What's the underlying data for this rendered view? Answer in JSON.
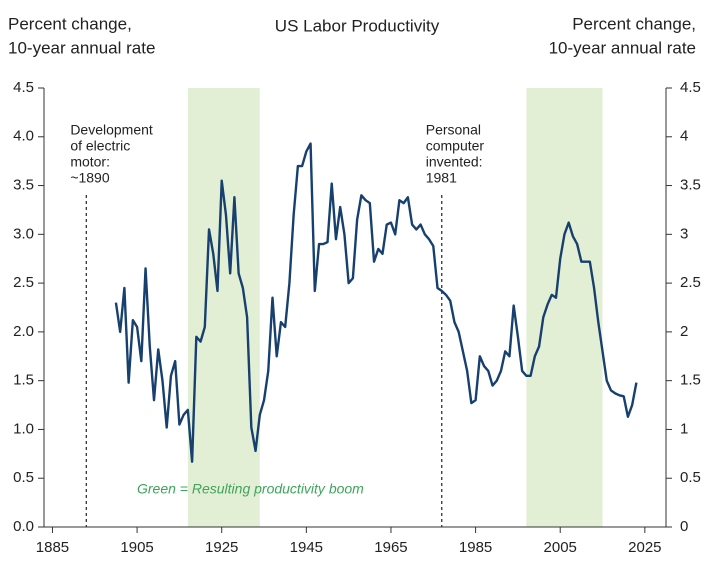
{
  "chart_data": {
    "type": "line",
    "title": "US Labor Productivity",
    "ylabel": [
      "Percent change,",
      "10-year annual rate"
    ],
    "y2label": [
      "Percent change,",
      "10-year annual rate"
    ],
    "x": [
      1900,
      1901,
      1902,
      1903,
      1904,
      1905,
      1906,
      1907,
      1908,
      1909,
      1910,
      1911,
      1912,
      1913,
      1914,
      1915,
      1916,
      1917,
      1918,
      1919,
      1920,
      1921,
      1922,
      1923,
      1924,
      1925,
      1926,
      1927,
      1928,
      1929,
      1930,
      1931,
      1932,
      1933,
      1934,
      1935,
      1936,
      1937,
      1938,
      1939,
      1940,
      1941,
      1942,
      1943,
      1944,
      1945,
      1946,
      1947,
      1948,
      1949,
      1950,
      1951,
      1952,
      1953,
      1954,
      1955,
      1956,
      1957,
      1958,
      1959,
      1960,
      1961,
      1962,
      1963,
      1964,
      1965,
      1966,
      1967,
      1968,
      1969,
      1970,
      1971,
      1972,
      1973,
      1974,
      1975,
      1976,
      1977,
      1978,
      1979,
      1980,
      1981,
      1982,
      1983,
      1984,
      1985,
      1986,
      1987,
      1988,
      1989,
      1990,
      1991,
      1992,
      1993,
      1994,
      1995,
      1996,
      1997,
      1998,
      1999,
      2000,
      2001,
      2002,
      2003,
      2004,
      2005,
      2006,
      2007,
      2008,
      2009,
      2010,
      2011,
      2012,
      2013,
      2014,
      2015,
      2016,
      2017,
      2018,
      2019,
      2020,
      2021,
      2022,
      2023
    ],
    "series": [
      {
        "color": "#17406e",
        "values": [
          2.3,
          2.0,
          2.45,
          1.48,
          2.12,
          2.05,
          1.7,
          2.65,
          1.85,
          1.3,
          1.82,
          1.5,
          1.02,
          1.55,
          1.7,
          1.05,
          1.15,
          1.2,
          0.67,
          1.95,
          1.9,
          2.05,
          3.05,
          2.8,
          2.42,
          3.55,
          3.2,
          2.6,
          3.38,
          2.6,
          2.45,
          2.15,
          1.02,
          0.78,
          1.15,
          1.3,
          1.6,
          2.35,
          1.75,
          2.1,
          2.05,
          2.5,
          3.2,
          3.7,
          3.7,
          3.85,
          3.93,
          2.42,
          2.9,
          2.9,
          2.92,
          3.52,
          2.95,
          3.28,
          3.0,
          2.5,
          2.55,
          3.15,
          3.4,
          3.35,
          3.32,
          2.72,
          2.85,
          2.8,
          3.1,
          3.12,
          3.0,
          3.35,
          3.32,
          3.38,
          3.1,
          3.05,
          3.1,
          3.0,
          2.95,
          2.88,
          2.45,
          2.42,
          2.38,
          2.32,
          2.1,
          2.0,
          1.8,
          1.6,
          1.27,
          1.3,
          1.75,
          1.65,
          1.6,
          1.45,
          1.5,
          1.6,
          1.8,
          1.75,
          2.27,
          1.95,
          1.6,
          1.55,
          1.55,
          1.75,
          1.85,
          2.15,
          2.28,
          2.38,
          2.35,
          2.75,
          3.0,
          3.12,
          2.98,
          2.9,
          2.72,
          2.72,
          2.72,
          2.45,
          2.1,
          1.8,
          1.5,
          1.4,
          1.37,
          1.35,
          1.34,
          1.13,
          1.25,
          1.48
        ]
      }
    ],
    "xlim": [
      1883,
      2030
    ],
    "xticks": [
      1885,
      1905,
      1925,
      1945,
      1965,
      1985,
      2005,
      2025
    ],
    "ylim": [
      0,
      4.5
    ],
    "yticks": [
      {
        "value": 0,
        "label": "0.0"
      },
      0.5,
      {
        "value": 1,
        "label": "1.0"
      },
      1.5,
      {
        "value": 2,
        "label": "2.0"
      },
      2.5,
      {
        "value": 3,
        "label": "3.0"
      },
      3.5,
      {
        "value": 4,
        "label": "4.0"
      },
      4.5
    ],
    "y2lim": [
      0,
      4.5
    ],
    "y2ticks": [
      0,
      0.5,
      1,
      1.5,
      2,
      2.5,
      3,
      3.5,
      4,
      4.5
    ],
    "shaded": [
      {
        "start": 1917,
        "end": 1934
      },
      {
        "start": 1997,
        "end": 2015
      }
    ],
    "shade_color": "#e3efd5",
    "annotations": [
      {
        "text": [
          "Development",
          "of electric",
          "motor:",
          "~1890"
        ],
        "x": 1893
      },
      {
        "text": [
          "Personal",
          "computer",
          "invented:",
          "1981"
        ],
        "x": 1977
      }
    ],
    "note": "Green = Resulting productivity boom",
    "note_color": "#3fa45b"
  }
}
